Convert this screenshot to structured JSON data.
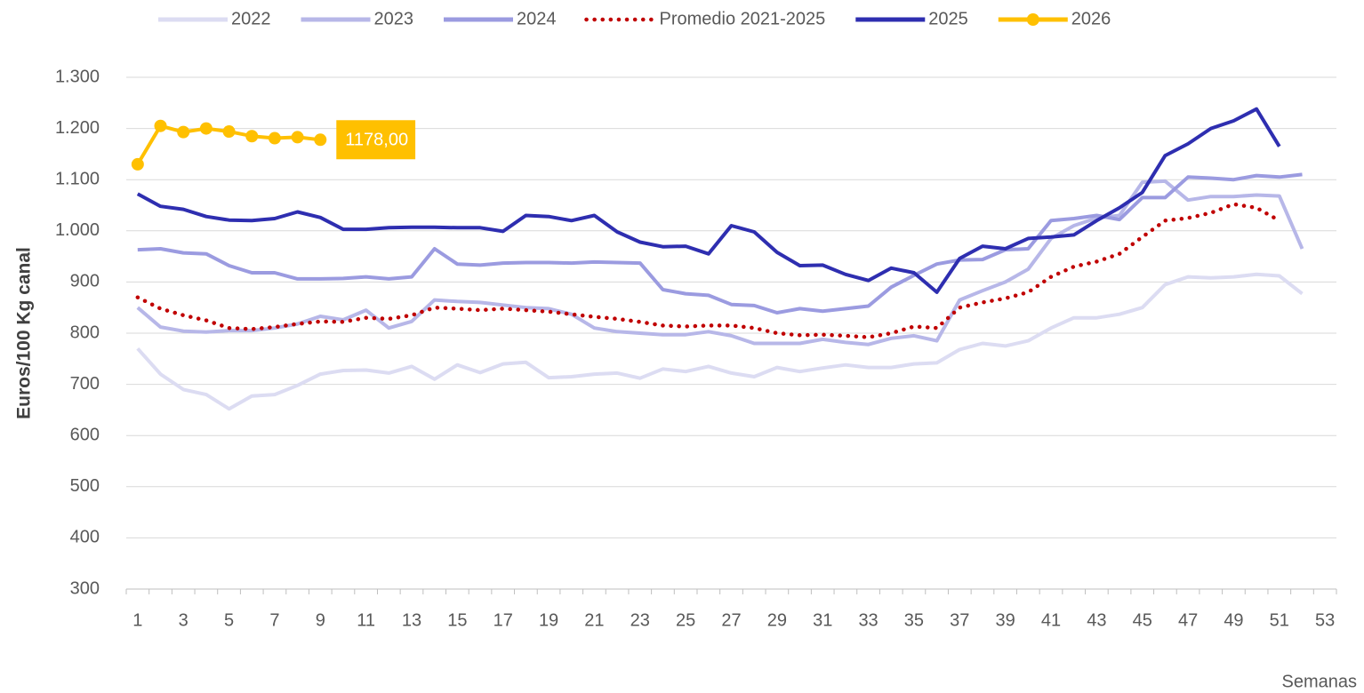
{
  "chart_data": {
    "type": "line",
    "y_label": "Euros/100 Kg canal",
    "x_label": "Semanas",
    "categories": [
      "1",
      null,
      "3",
      null,
      "5",
      null,
      "7",
      null,
      "9",
      null,
      "11",
      null,
      "13",
      null,
      "15",
      null,
      "17",
      null,
      "19",
      null,
      "21",
      null,
      "23",
      null,
      "25",
      null,
      "27",
      null,
      "29",
      null,
      "31",
      null,
      "33",
      null,
      "35",
      null,
      "37",
      null,
      "39",
      null,
      "41",
      null,
      "43",
      null,
      "45",
      null,
      "47",
      null,
      "49",
      null,
      "51",
      null,
      "53"
    ],
    "ylim": [
      300,
      1300
    ],
    "yticks": [
      300,
      400,
      500,
      600,
      700,
      800,
      900,
      {
        "value": 1000,
        "label": "1.000"
      },
      {
        "value": 1100,
        "label": "1.100"
      },
      {
        "value": 1200,
        "label": "1.200"
      },
      {
        "value": 1300,
        "label": "1.300"
      }
    ],
    "grid": true,
    "legend": "top",
    "series": [
      {
        "name": "2022",
        "color": "#dcdcf2",
        "style": "solid",
        "values": [
          770,
          720,
          690,
          680,
          652,
          677,
          680,
          698,
          720,
          727,
          728,
          722,
          735,
          710,
          738,
          723,
          740,
          743,
          713,
          715,
          720,
          722,
          712,
          730,
          725,
          735,
          722,
          715,
          733,
          725,
          732,
          738,
          733,
          733,
          740,
          742,
          768,
          780,
          775,
          785,
          810,
          830,
          830,
          837,
          850,
          895,
          910,
          908,
          910,
          915,
          912,
          877,
          null
        ]
      },
      {
        "name": "2023",
        "color": "#b7b7e8",
        "style": "solid",
        "values": [
          850,
          812,
          804,
          802,
          805,
          805,
          810,
          818,
          833,
          826,
          845,
          810,
          823,
          865,
          862,
          860,
          855,
          850,
          848,
          837,
          810,
          803,
          800,
          797,
          797,
          803,
          795,
          780,
          780,
          780,
          788,
          782,
          778,
          790,
          795,
          785,
          865,
          883,
          900,
          925,
          985,
          1010,
          1025,
          1030,
          1095,
          1097,
          1060,
          1067,
          1067,
          1070,
          1068,
          965,
          null
        ]
      },
      {
        "name": "2024",
        "color": "#9b9be0",
        "style": "solid",
        "values": [
          963,
          965,
          957,
          955,
          932,
          918,
          918,
          906,
          906,
          907,
          910,
          906,
          910,
          965,
          935,
          933,
          937,
          938,
          938,
          937,
          939,
          938,
          937,
          885,
          877,
          874,
          856,
          854,
          840,
          848,
          843,
          848,
          853,
          890,
          913,
          935,
          943,
          944,
          963,
          965,
          1020,
          1024,
          1030,
          1022,
          1065,
          1065,
          1105,
          1103,
          1100,
          1108,
          1105,
          1110,
          null
        ]
      },
      {
        "name": "Promedio 2021-2025",
        "color": "#c00000",
        "style": "dotted",
        "values": [
          870,
          848,
          835,
          825,
          810,
          808,
          812,
          818,
          823,
          822,
          830,
          828,
          835,
          850,
          848,
          845,
          848,
          845,
          842,
          837,
          832,
          828,
          822,
          815,
          813,
          815,
          815,
          810,
          800,
          796,
          797,
          795,
          792,
          800,
          813,
          810,
          850,
          860,
          868,
          880,
          910,
          930,
          940,
          955,
          988,
          1020,
          1025,
          1035,
          1052,
          1045,
          1020,
          null,
          null
        ]
      },
      {
        "name": "2025",
        "color": "#2e2eb0",
        "style": "solid",
        "values": [
          1072,
          1048,
          1042,
          1028,
          1021,
          1020,
          1024,
          1037,
          1026,
          1003,
          1003,
          1006,
          1007,
          1007,
          1006,
          1006,
          999,
          1030,
          1028,
          1020,
          1030,
          998,
          978,
          969,
          970,
          955,
          1010,
          998,
          958,
          932,
          933,
          915,
          903,
          927,
          918,
          880,
          946,
          970,
          965,
          985,
          988,
          992,
          1020,
          1045,
          1075,
          1147,
          1170,
          1200,
          1215,
          1238,
          1165,
          null,
          null
        ]
      },
      {
        "name": "2026",
        "color": "#ffc000",
        "style": "markers",
        "values": [
          1130,
          1205,
          1193,
          1200,
          1194,
          1185,
          1181,
          1183,
          1178,
          null,
          null,
          null,
          null,
          null,
          null,
          null,
          null,
          null,
          null,
          null,
          null,
          null,
          null,
          null,
          null,
          null,
          null,
          null,
          null,
          null,
          null,
          null,
          null,
          null,
          null,
          null,
          null,
          null,
          null,
          null,
          null,
          null,
          null,
          null,
          null,
          null,
          null,
          null,
          null,
          null,
          null,
          null,
          null
        ],
        "value_labels": [
          null,
          null,
          null,
          null,
          null,
          null,
          null,
          null,
          "1178,00",
          null,
          null,
          null,
          null,
          null,
          null,
          null,
          null,
          null,
          null,
          null,
          null,
          null,
          null,
          null,
          null,
          null,
          null,
          null,
          null,
          null,
          null,
          null,
          null,
          null,
          null,
          null,
          null,
          null,
          null,
          null,
          null,
          null,
          null,
          null,
          null,
          null,
          null,
          null,
          null,
          null,
          null,
          null,
          null
        ]
      }
    ]
  }
}
